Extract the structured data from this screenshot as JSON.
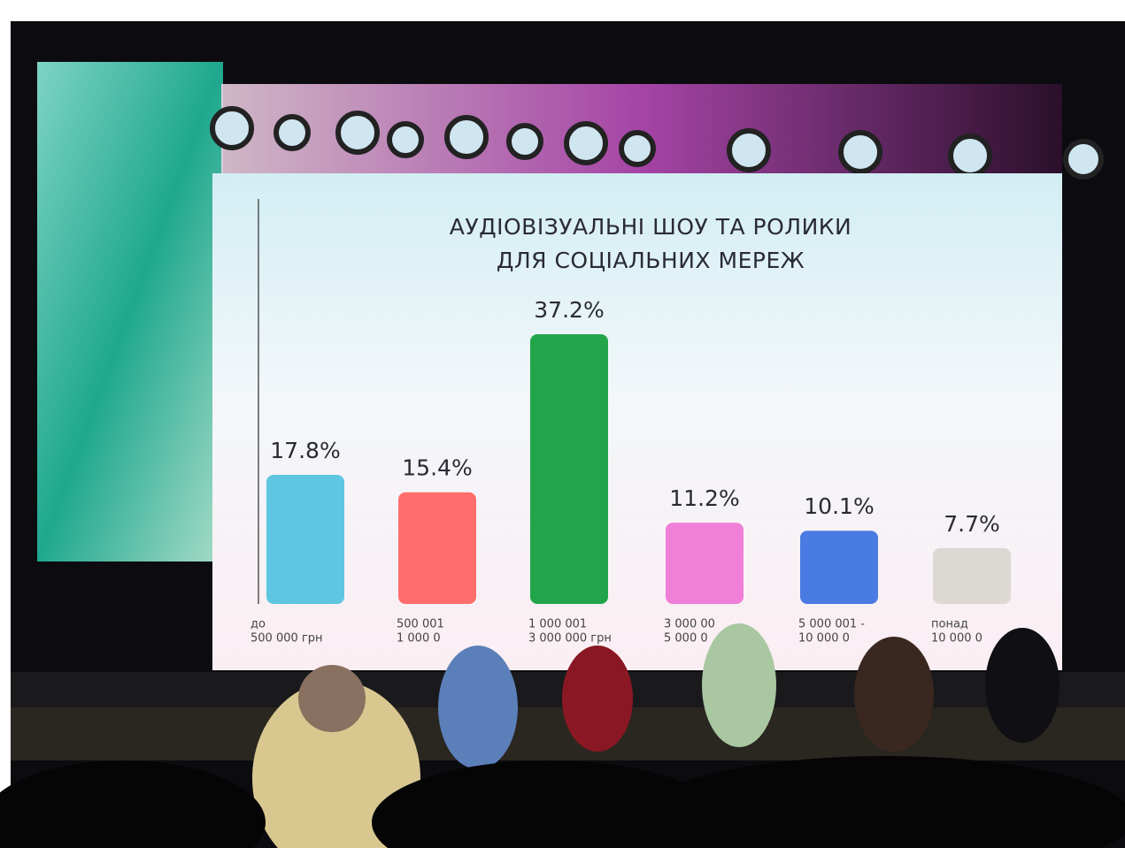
{
  "chart_data": {
    "type": "bar",
    "title": [
      "АУДІОВІЗУАЛЬНІ ШОУ ТА РОЛИКИ",
      "ДЛЯ СОЦІАЛЬНИХ МЕРЕЖ"
    ],
    "categories": [
      [
        "до",
        "500 000 грн"
      ],
      [
        "500 001",
        "1 000 0"
      ],
      [
        "1 000 001",
        "3 000 000 грн"
      ],
      [
        "3 000 00",
        "5 000 0"
      ],
      [
        "5 000 001 -",
        "10 000 0"
      ],
      [
        "понад",
        "10 000 0"
      ]
    ],
    "values": [
      17.8,
      15.4,
      37.2,
      11.2,
      10.1,
      7.7
    ],
    "value_labels": [
      "17.8%",
      "15.4%",
      "37.2%",
      "11.2%",
      "10.1%",
      "7.7%"
    ],
    "colors": [
      "#5ec6e0",
      "#ff6e6c",
      "#22a54a",
      "#f07fd8",
      "#4a7be2",
      "#dcd8d3"
    ]
  }
}
